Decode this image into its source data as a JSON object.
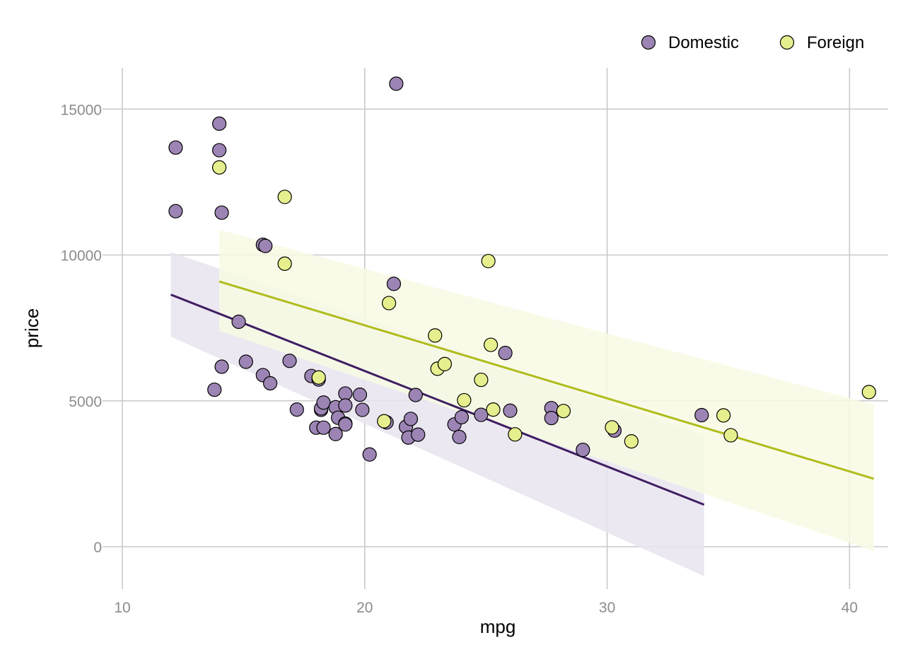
{
  "chart_data": {
    "type": "scatter",
    "xlabel": "mpg",
    "ylabel": "price",
    "xlim": [
      9.2,
      41.7
    ],
    "ylim": [
      -1500,
      16400
    ],
    "x_ticks": [
      10,
      20,
      30,
      40
    ],
    "y_ticks": [
      0,
      5000,
      10000,
      15000
    ],
    "x_tick_labels": [
      "10",
      "20",
      "30",
      "40"
    ],
    "y_tick_labels": [
      "0",
      "5000",
      "10000",
      "15000"
    ],
    "grid": true,
    "legend_position": "top-right",
    "series": [
      {
        "name": "Domestic",
        "color": "#3f1e63",
        "point_color": "#9c84b4",
        "band_color": "#e9e4ef",
        "fit": {
          "x": [
            12,
            34
          ],
          "y": [
            8640,
            1440
          ],
          "lower": [
            7200,
            -1010
          ],
          "upper": [
            10100,
            3820
          ]
        },
        "points": [
          [
            12.2,
            13680
          ],
          [
            12.2,
            11500
          ],
          [
            14.0,
            14500
          ],
          [
            14.0,
            13590
          ],
          [
            14.1,
            11450
          ],
          [
            13.8,
            5380
          ],
          [
            14.1,
            6170
          ],
          [
            14.8,
            7710
          ],
          [
            15.1,
            6340
          ],
          [
            15.8,
            10350
          ],
          [
            15.9,
            10310
          ],
          [
            15.8,
            5880
          ],
          [
            16.1,
            5600
          ],
          [
            16.9,
            6370
          ],
          [
            17.2,
            4700
          ],
          [
            17.8,
            5850
          ],
          [
            18.1,
            5730
          ],
          [
            18.0,
            4080
          ],
          [
            18.3,
            4080
          ],
          [
            18.2,
            4690
          ],
          [
            18.2,
            4740
          ],
          [
            18.3,
            4940
          ],
          [
            18.8,
            4780
          ],
          [
            18.8,
            3860
          ],
          [
            18.9,
            4420
          ],
          [
            19.2,
            5250
          ],
          [
            19.2,
            4840
          ],
          [
            19.2,
            4220
          ],
          [
            19.2,
            4190
          ],
          [
            19.8,
            5210
          ],
          [
            19.9,
            4690
          ],
          [
            20.2,
            3160
          ],
          [
            20.9,
            4260
          ],
          [
            21.2,
            9010
          ],
          [
            21.3,
            15870
          ],
          [
            21.7,
            4110
          ],
          [
            21.8,
            3740
          ],
          [
            21.9,
            4380
          ],
          [
            22.1,
            5200
          ],
          [
            22.2,
            3840
          ],
          [
            23.7,
            4190
          ],
          [
            23.9,
            3760
          ],
          [
            24.0,
            4440
          ],
          [
            24.8,
            4520
          ],
          [
            25.8,
            6640
          ],
          [
            26.0,
            4660
          ],
          [
            27.7,
            4750
          ],
          [
            27.7,
            4410
          ],
          [
            29.0,
            3320
          ],
          [
            30.3,
            3980
          ],
          [
            33.9,
            4510
          ]
        ]
      },
      {
        "name": "Foreign",
        "color": "#b0bc1c",
        "point_color": "#e6ef8d",
        "band_color": "#f8fae4",
        "fit": {
          "x": [
            14,
            41
          ],
          "y": [
            9090,
            2330
          ],
          "lower": [
            7400,
            -150
          ],
          "upper": [
            10860,
            4870
          ]
        },
        "points": [
          [
            14.0,
            13000
          ],
          [
            16.7,
            11990
          ],
          [
            16.7,
            9700
          ],
          [
            18.1,
            5800
          ],
          [
            20.8,
            4300
          ],
          [
            21.0,
            8350
          ],
          [
            22.9,
            7240
          ],
          [
            23.0,
            6100
          ],
          [
            23.3,
            6260
          ],
          [
            24.1,
            5020
          ],
          [
            24.8,
            5720
          ],
          [
            25.1,
            9790
          ],
          [
            25.2,
            6920
          ],
          [
            25.3,
            4700
          ],
          [
            26.2,
            3850
          ],
          [
            28.2,
            4650
          ],
          [
            30.2,
            4090
          ],
          [
            31.0,
            3610
          ],
          [
            34.8,
            4500
          ],
          [
            35.1,
            3820
          ],
          [
            40.8,
            5300
          ]
        ]
      }
    ]
  }
}
